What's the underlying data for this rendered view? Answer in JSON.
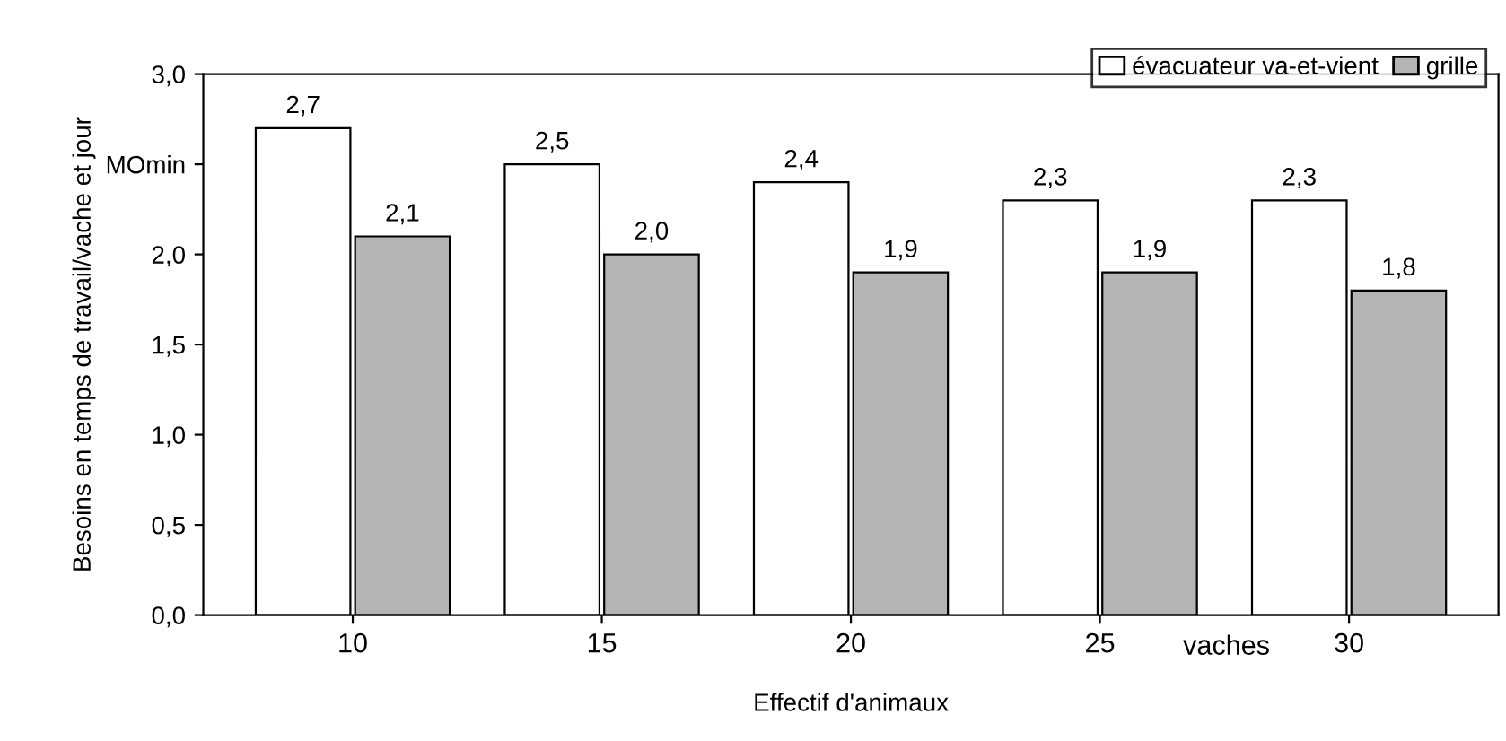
{
  "chart_data": {
    "type": "bar",
    "xlabel": "Effectif d'animaux",
    "ylabel": "Besoins en temps de travail/vache et jour",
    "categories": [
      "10",
      "15",
      "20",
      "25",
      "30"
    ],
    "series": [
      {
        "name": "évacuateur va-et-vient",
        "color": "#ffffff",
        "values": [
          2.7,
          2.5,
          2.4,
          2.3,
          2.3
        ],
        "value_labels": [
          "2,7",
          "2,5",
          "2,4",
          "2,3",
          "2,3"
        ]
      },
      {
        "name": "grille",
        "color": "#b4b4b4",
        "values": [
          2.1,
          2.0,
          1.9,
          1.9,
          1.8
        ],
        "value_labels": [
          "2,1",
          "2,0",
          "1,9",
          "1,9",
          "1,8"
        ]
      }
    ],
    "ylim": [
      0,
      3
    ],
    "yticks": [
      {
        "value": 0,
        "label": "0,0"
      },
      {
        "value": 0.5,
        "label": "0,5"
      },
      {
        "value": 1,
        "label": "1,0"
      },
      {
        "value": 1.5,
        "label": "1,5"
      },
      {
        "value": 2,
        "label": "2,0"
      },
      {
        "value": 2.5,
        "label": "MOmin"
      },
      {
        "value": 3,
        "label": "3,0"
      }
    ],
    "annotations": [
      "vaches"
    ],
    "legend": "top right",
    "grid": false
  }
}
